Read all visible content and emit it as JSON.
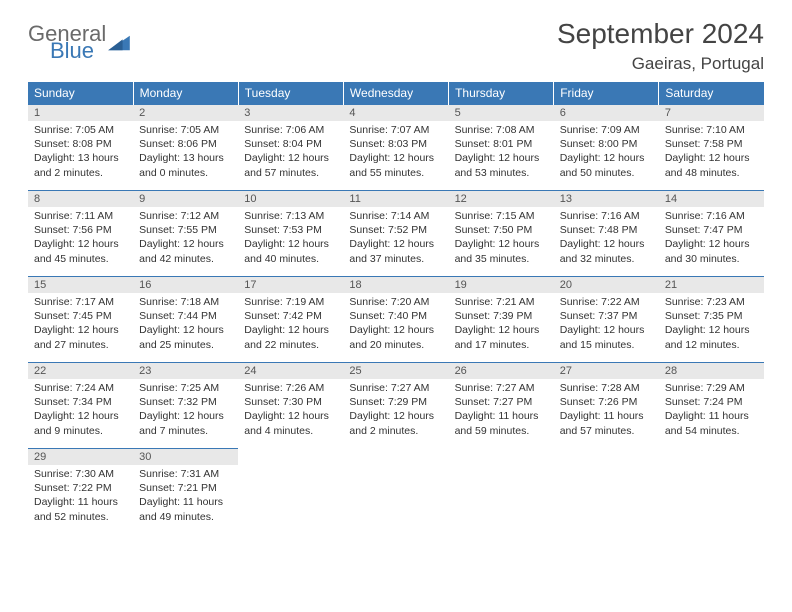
{
  "brand": {
    "general": "General",
    "blue": "Blue"
  },
  "title": "September 2024",
  "location": "Gaeiras, Portugal",
  "colors": {
    "header_bg": "#3a78b5",
    "header_text": "#ffffff",
    "daynum_bg": "#e8e8e8",
    "text": "#333333",
    "logo_gray": "#6a6a6a",
    "logo_blue": "#3a78b5",
    "rule": "#3a78b5"
  },
  "weekdays": [
    "Sunday",
    "Monday",
    "Tuesday",
    "Wednesday",
    "Thursday",
    "Friday",
    "Saturday"
  ],
  "days": [
    {
      "n": "1",
      "sr": "Sunrise: 7:05 AM",
      "ss": "Sunset: 8:08 PM",
      "dl1": "Daylight: 13 hours",
      "dl2": "and 2 minutes."
    },
    {
      "n": "2",
      "sr": "Sunrise: 7:05 AM",
      "ss": "Sunset: 8:06 PM",
      "dl1": "Daylight: 13 hours",
      "dl2": "and 0 minutes."
    },
    {
      "n": "3",
      "sr": "Sunrise: 7:06 AM",
      "ss": "Sunset: 8:04 PM",
      "dl1": "Daylight: 12 hours",
      "dl2": "and 57 minutes."
    },
    {
      "n": "4",
      "sr": "Sunrise: 7:07 AM",
      "ss": "Sunset: 8:03 PM",
      "dl1": "Daylight: 12 hours",
      "dl2": "and 55 minutes."
    },
    {
      "n": "5",
      "sr": "Sunrise: 7:08 AM",
      "ss": "Sunset: 8:01 PM",
      "dl1": "Daylight: 12 hours",
      "dl2": "and 53 minutes."
    },
    {
      "n": "6",
      "sr": "Sunrise: 7:09 AM",
      "ss": "Sunset: 8:00 PM",
      "dl1": "Daylight: 12 hours",
      "dl2": "and 50 minutes."
    },
    {
      "n": "7",
      "sr": "Sunrise: 7:10 AM",
      "ss": "Sunset: 7:58 PM",
      "dl1": "Daylight: 12 hours",
      "dl2": "and 48 minutes."
    },
    {
      "n": "8",
      "sr": "Sunrise: 7:11 AM",
      "ss": "Sunset: 7:56 PM",
      "dl1": "Daylight: 12 hours",
      "dl2": "and 45 minutes."
    },
    {
      "n": "9",
      "sr": "Sunrise: 7:12 AM",
      "ss": "Sunset: 7:55 PM",
      "dl1": "Daylight: 12 hours",
      "dl2": "and 42 minutes."
    },
    {
      "n": "10",
      "sr": "Sunrise: 7:13 AM",
      "ss": "Sunset: 7:53 PM",
      "dl1": "Daylight: 12 hours",
      "dl2": "and 40 minutes."
    },
    {
      "n": "11",
      "sr": "Sunrise: 7:14 AM",
      "ss": "Sunset: 7:52 PM",
      "dl1": "Daylight: 12 hours",
      "dl2": "and 37 minutes."
    },
    {
      "n": "12",
      "sr": "Sunrise: 7:15 AM",
      "ss": "Sunset: 7:50 PM",
      "dl1": "Daylight: 12 hours",
      "dl2": "and 35 minutes."
    },
    {
      "n": "13",
      "sr": "Sunrise: 7:16 AM",
      "ss": "Sunset: 7:48 PM",
      "dl1": "Daylight: 12 hours",
      "dl2": "and 32 minutes."
    },
    {
      "n": "14",
      "sr": "Sunrise: 7:16 AM",
      "ss": "Sunset: 7:47 PM",
      "dl1": "Daylight: 12 hours",
      "dl2": "and 30 minutes."
    },
    {
      "n": "15",
      "sr": "Sunrise: 7:17 AM",
      "ss": "Sunset: 7:45 PM",
      "dl1": "Daylight: 12 hours",
      "dl2": "and 27 minutes."
    },
    {
      "n": "16",
      "sr": "Sunrise: 7:18 AM",
      "ss": "Sunset: 7:44 PM",
      "dl1": "Daylight: 12 hours",
      "dl2": "and 25 minutes."
    },
    {
      "n": "17",
      "sr": "Sunrise: 7:19 AM",
      "ss": "Sunset: 7:42 PM",
      "dl1": "Daylight: 12 hours",
      "dl2": "and 22 minutes."
    },
    {
      "n": "18",
      "sr": "Sunrise: 7:20 AM",
      "ss": "Sunset: 7:40 PM",
      "dl1": "Daylight: 12 hours",
      "dl2": "and 20 minutes."
    },
    {
      "n": "19",
      "sr": "Sunrise: 7:21 AM",
      "ss": "Sunset: 7:39 PM",
      "dl1": "Daylight: 12 hours",
      "dl2": "and 17 minutes."
    },
    {
      "n": "20",
      "sr": "Sunrise: 7:22 AM",
      "ss": "Sunset: 7:37 PM",
      "dl1": "Daylight: 12 hours",
      "dl2": "and 15 minutes."
    },
    {
      "n": "21",
      "sr": "Sunrise: 7:23 AM",
      "ss": "Sunset: 7:35 PM",
      "dl1": "Daylight: 12 hours",
      "dl2": "and 12 minutes."
    },
    {
      "n": "22",
      "sr": "Sunrise: 7:24 AM",
      "ss": "Sunset: 7:34 PM",
      "dl1": "Daylight: 12 hours",
      "dl2": "and 9 minutes."
    },
    {
      "n": "23",
      "sr": "Sunrise: 7:25 AM",
      "ss": "Sunset: 7:32 PM",
      "dl1": "Daylight: 12 hours",
      "dl2": "and 7 minutes."
    },
    {
      "n": "24",
      "sr": "Sunrise: 7:26 AM",
      "ss": "Sunset: 7:30 PM",
      "dl1": "Daylight: 12 hours",
      "dl2": "and 4 minutes."
    },
    {
      "n": "25",
      "sr": "Sunrise: 7:27 AM",
      "ss": "Sunset: 7:29 PM",
      "dl1": "Daylight: 12 hours",
      "dl2": "and 2 minutes."
    },
    {
      "n": "26",
      "sr": "Sunrise: 7:27 AM",
      "ss": "Sunset: 7:27 PM",
      "dl1": "Daylight: 11 hours",
      "dl2": "and 59 minutes."
    },
    {
      "n": "27",
      "sr": "Sunrise: 7:28 AM",
      "ss": "Sunset: 7:26 PM",
      "dl1": "Daylight: 11 hours",
      "dl2": "and 57 minutes."
    },
    {
      "n": "28",
      "sr": "Sunrise: 7:29 AM",
      "ss": "Sunset: 7:24 PM",
      "dl1": "Daylight: 11 hours",
      "dl2": "and 54 minutes."
    },
    {
      "n": "29",
      "sr": "Sunrise: 7:30 AM",
      "ss": "Sunset: 7:22 PM",
      "dl1": "Daylight: 11 hours",
      "dl2": "and 52 minutes."
    },
    {
      "n": "30",
      "sr": "Sunrise: 7:31 AM",
      "ss": "Sunset: 7:21 PM",
      "dl1": "Daylight: 11 hours",
      "dl2": "and 49 minutes."
    }
  ]
}
